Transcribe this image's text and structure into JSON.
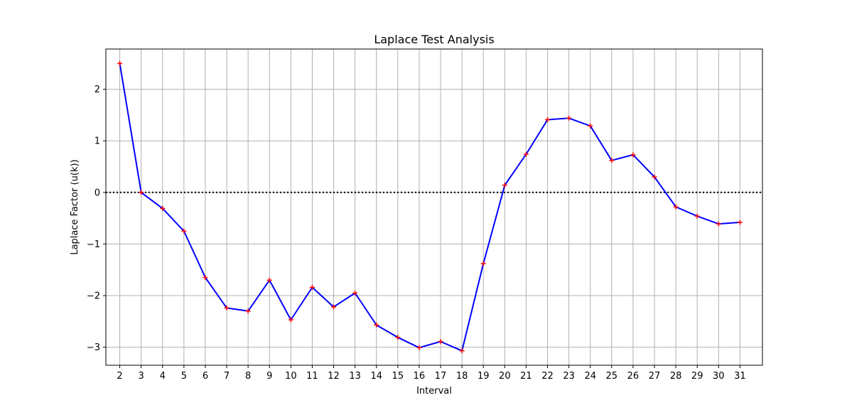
{
  "chart_data": {
    "type": "line",
    "title": "Laplace Test Analysis",
    "xlabel": "Interval",
    "ylabel": "Laplace Factor (u(k))",
    "x": [
      2,
      3,
      4,
      5,
      6,
      7,
      8,
      9,
      10,
      11,
      12,
      13,
      14,
      15,
      16,
      17,
      18,
      19,
      20,
      21,
      22,
      23,
      24,
      25,
      26,
      27,
      28,
      29,
      30,
      31
    ],
    "series": [
      {
        "values": [
          2.5,
          0.0,
          -0.31,
          -0.75,
          -1.65,
          -2.24,
          -2.3,
          -1.7,
          -2.47,
          -1.84,
          -2.22,
          -1.95,
          -2.57,
          -2.81,
          -3.01,
          -2.89,
          -3.07,
          -1.38,
          0.14,
          0.74,
          1.41,
          1.44,
          1.29,
          0.62,
          0.73,
          0.3,
          -0.28,
          -0.46,
          -0.61,
          -0.58
        ],
        "line_color": "#0000ff",
        "marker": "+",
        "marker_color": "#ff0000"
      }
    ],
    "yticks": [
      2,
      1,
      0,
      -1,
      -2,
      -3
    ],
    "ytick_labels": [
      "2",
      "1",
      "0",
      "−1",
      "−2",
      "−3"
    ],
    "xlim": [
      1.35,
      32.05
    ],
    "ylim": [
      -3.35,
      2.78
    ],
    "reference_line": {
      "y": 0,
      "style": "dotted",
      "color": "#000000"
    },
    "grid": true,
    "grid_color": "#b0b0b0"
  }
}
